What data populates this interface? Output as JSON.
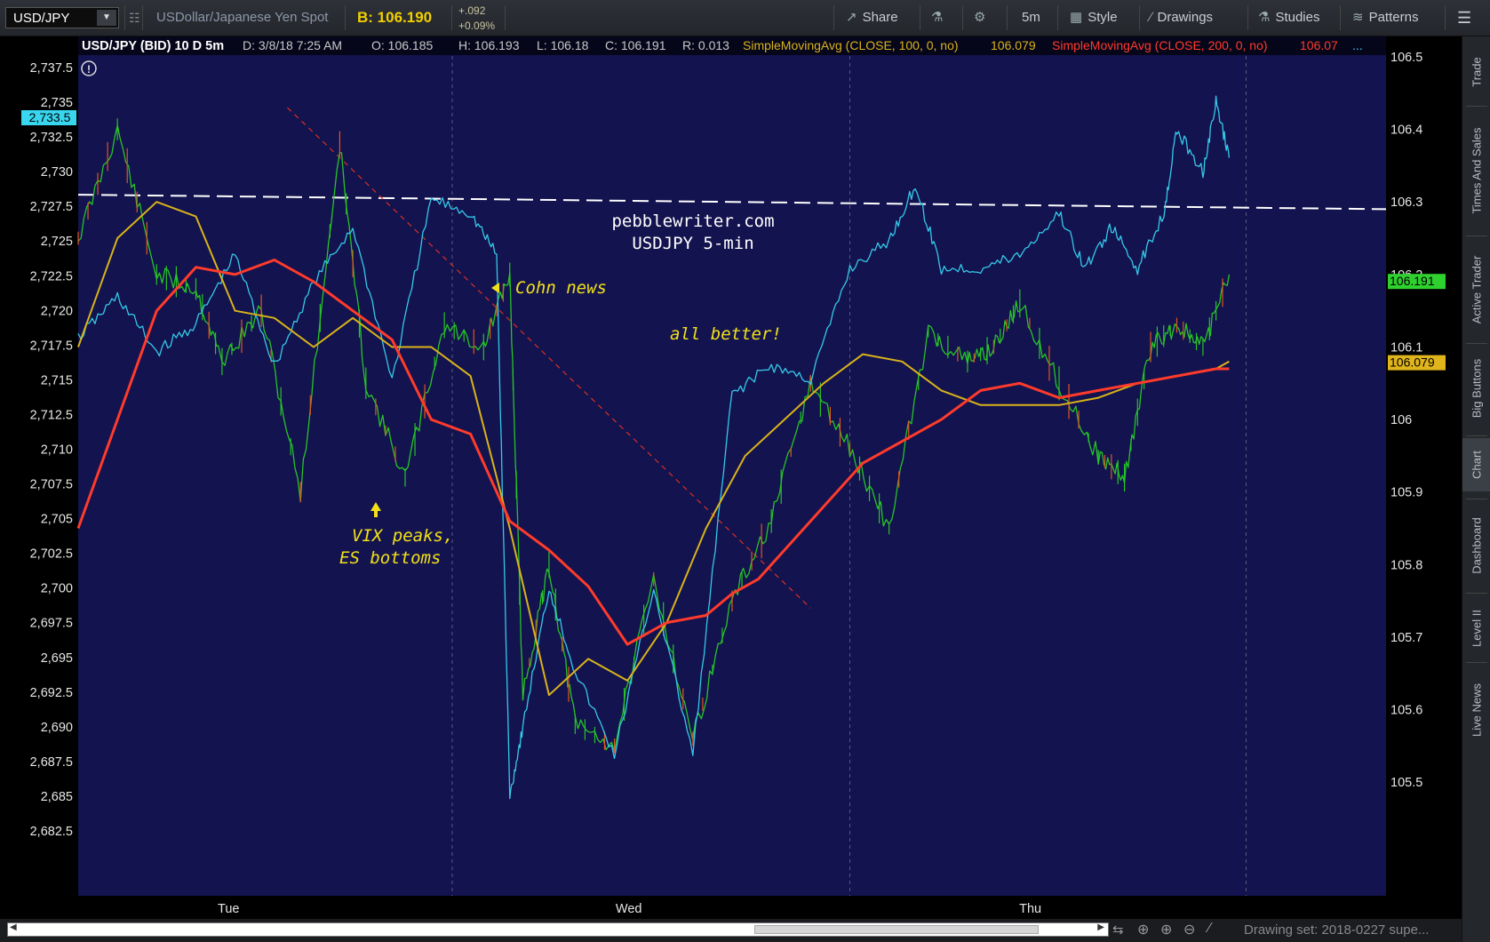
{
  "toolbar": {
    "symbol": "USD/JPY",
    "description": "USDollar/Japanese Yen Spot",
    "bid": "B: 106.190",
    "change_abs": "+.092",
    "change_pct": "+0.09%",
    "share": "Share",
    "interval": "5m",
    "style": "Style",
    "drawings": "Drawings",
    "studies": "Studies",
    "patterns": "Patterns"
  },
  "header": {
    "title": "USD/JPY (BID) 10 D 5m",
    "date": "D: 3/8/18 7:25 AM",
    "open": "O: 106.185",
    "high": "H: 106.193",
    "low": "L: 106.18",
    "close": "C: 106.191",
    "range": "R: 0.013",
    "sma100": "SimpleMovingAvg (CLOSE, 100, 0, no)",
    "sma100_val": "106.079",
    "sma200": "SimpleMovingAvg (CLOSE, 200, 0, no)",
    "sma200_val": "106.07",
    "more": "..."
  },
  "sidebar": {
    "tabs": [
      "Trade",
      "Times And Sales",
      "Active Trader",
      "Big Buttons",
      "Chart",
      "Dashboard",
      "Level II",
      "Live News"
    ],
    "active": "Chart"
  },
  "bottom": {
    "drawing_set": "Drawing set: 2018-0227 supe..."
  },
  "chart_data": {
    "type": "line",
    "title": "USD/JPY (BID) 10 D 5m",
    "x_categories": [
      "Tue",
      "Wed",
      "Thu"
    ],
    "left_axis": {
      "ticks": [
        2682.5,
        2685,
        2687.5,
        2690,
        2692.5,
        2695,
        2697.5,
        2700,
        2702.5,
        2705,
        2707.5,
        2710,
        2712.5,
        2715,
        2717.5,
        2720,
        2722.5,
        2725,
        2727.5,
        2730,
        2732.5,
        2735,
        2737.5
      ],
      "tick_labels": [
        "2,682.5",
        "2,685",
        "2,687.5",
        "2,690",
        "2,692.5",
        "2,695",
        "2,697.5",
        "2,700",
        "2,702.5",
        "2,705",
        "2,707.5",
        "2,710",
        "2,712.5",
        "2,715",
        "2,717.5",
        "2,720",
        "2,722.5",
        "2,725",
        "2,727.5",
        "2,730",
        "2,732.5",
        "2,735",
        "2,737.5"
      ],
      "current_label": "2,733.5",
      "current_value": 2733.5
    },
    "right_axis": {
      "ticks": [
        105.5,
        105.6,
        105.7,
        105.8,
        105.9,
        106,
        106.1,
        106.2,
        106.3,
        106.4,
        106.5
      ],
      "tick_labels": [
        "105.5",
        "105.6",
        "105.7",
        "105.8",
        "105.9",
        "106",
        "106.1",
        "106.2",
        "106.3",
        "106.4",
        "106.5"
      ],
      "price_label": "106.191",
      "price_value": 106.191,
      "sma_label": "106.079",
      "sma_value": 106.079
    },
    "series": [
      {
        "name": "USD/JPY",
        "color": "#27c427",
        "axis": "right",
        "t": [
          0,
          0.03,
          0.06,
          0.09,
          0.11,
          0.14,
          0.17,
          0.2,
          0.22,
          0.25,
          0.28,
          0.31,
          0.33,
          0.34,
          0.36,
          0.38,
          0.41,
          0.44,
          0.47,
          0.5,
          0.53,
          0.56,
          0.59,
          0.62,
          0.65,
          0.68,
          0.7,
          0.72,
          0.75,
          0.78,
          0.8,
          0.82,
          0.84,
          0.86,
          0.88
        ],
        "values": [
          106.25,
          106.4,
          106.2,
          106.18,
          106.08,
          106.15,
          105.9,
          106.38,
          106.05,
          105.92,
          106.13,
          106.1,
          106.2,
          105.62,
          105.8,
          105.58,
          105.55,
          105.78,
          105.56,
          105.75,
          105.86,
          106.05,
          105.96,
          105.85,
          106.12,
          106.08,
          106.1,
          106.16,
          106.05,
          105.95,
          105.92,
          106.1,
          106.13,
          106.1,
          106.2
        ]
      },
      {
        "name": "ES",
        "color": "#35c9e8",
        "axis": "left",
        "t": [
          0,
          0.03,
          0.06,
          0.09,
          0.12,
          0.15,
          0.18,
          0.21,
          0.24,
          0.27,
          0.3,
          0.32,
          0.33,
          0.34,
          0.36,
          0.38,
          0.41,
          0.44,
          0.47,
          0.5,
          0.53,
          0.56,
          0.59,
          0.62,
          0.64,
          0.66,
          0.69,
          0.72,
          0.75,
          0.77,
          0.79,
          0.81,
          0.83,
          0.84,
          0.86,
          0.87,
          0.88
        ],
        "values": [
          2718,
          2721,
          2717,
          2719,
          2724,
          2716,
          2722,
          2726,
          2715,
          2728,
          2727,
          2724,
          2685,
          2690,
          2700,
          2694,
          2688,
          2700,
          2688,
          2714,
          2716,
          2715,
          2723,
          2725,
          2729,
          2723,
          2723,
          2724,
          2727,
          2723,
          2726,
          2723,
          2727,
          2733,
          2730,
          2735,
          2731
        ]
      },
      {
        "name": "SimpleMovingAvg (CLOSE, 100, 0, no)",
        "color": "#d9b31a",
        "axis": "right",
        "t": [
          0,
          0.03,
          0.06,
          0.09,
          0.12,
          0.15,
          0.18,
          0.21,
          0.24,
          0.27,
          0.3,
          0.33,
          0.36,
          0.39,
          0.42,
          0.45,
          0.48,
          0.51,
          0.54,
          0.57,
          0.6,
          0.63,
          0.66,
          0.69,
          0.72,
          0.75,
          0.78,
          0.81,
          0.84,
          0.87,
          0.88
        ],
        "values": [
          106.1,
          106.25,
          106.3,
          106.28,
          106.15,
          106.14,
          106.1,
          106.14,
          106.1,
          106.1,
          106.06,
          105.85,
          105.62,
          105.67,
          105.64,
          105.72,
          105.85,
          105.95,
          106.0,
          106.05,
          106.09,
          106.08,
          106.04,
          106.02,
          106.02,
          106.02,
          106.03,
          106.05,
          106.06,
          106.07,
          106.08
        ]
      },
      {
        "name": "SimpleMovingAvg (CLOSE, 200, 0, no)",
        "color": "#ff3b2b",
        "axis": "right",
        "t": [
          0,
          0.03,
          0.06,
          0.09,
          0.12,
          0.15,
          0.18,
          0.21,
          0.24,
          0.27,
          0.3,
          0.33,
          0.36,
          0.39,
          0.42,
          0.45,
          0.48,
          0.5,
          0.52,
          0.54,
          0.57,
          0.6,
          0.63,
          0.66,
          0.69,
          0.72,
          0.75,
          0.78,
          0.81,
          0.84,
          0.87,
          0.88
        ],
        "values": [
          105.85,
          106.0,
          106.15,
          106.21,
          106.2,
          106.22,
          106.19,
          106.15,
          106.11,
          106.0,
          105.98,
          105.86,
          105.82,
          105.77,
          105.69,
          105.72,
          105.73,
          105.76,
          105.78,
          105.82,
          105.88,
          105.94,
          105.97,
          106.0,
          106.04,
          106.05,
          106.03,
          106.04,
          106.05,
          106.06,
          106.07,
          106.07
        ]
      }
    ],
    "reference_lines": [
      {
        "name": "horizontal-resistance",
        "style": "dashed",
        "color": "#ffffff",
        "axis": "right",
        "from": [
          0,
          106.31
        ],
        "to": [
          1,
          106.29
        ]
      },
      {
        "name": "downtrend-line",
        "style": "dashed",
        "color": "#d8301f",
        "axis": "right",
        "from": [
          0.16,
          106.43
        ],
        "to": [
          0.56,
          105.74
        ]
      }
    ],
    "annotations": [
      {
        "text": "pebblewriter.com",
        "color": "#ffffff"
      },
      {
        "text": "USDJPY 5-min",
        "color": "#ffffff"
      },
      {
        "text": "Cohn news",
        "color": "#f1e019"
      },
      {
        "text": "all better!",
        "color": "#f1e019"
      },
      {
        "text": "VIX peaks,",
        "color": "#f1e019"
      },
      {
        "text": "ES bottoms",
        "color": "#f1e019"
      }
    ],
    "grid": "vertical day separators",
    "legend": "top"
  }
}
